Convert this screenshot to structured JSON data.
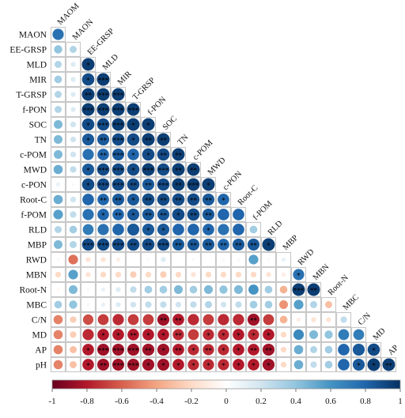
{
  "chart_data": {
    "type": "heatmap",
    "subtype": "correlation-circles-lower-triangle",
    "variables": [
      "MAOM",
      "EE-GRSP",
      "MLD",
      "MIR",
      "T-GRSP",
      "f-PON",
      "SOC",
      "TN",
      "c-POM",
      "MWD",
      "c-PON",
      "Root-C",
      "f-POM",
      "RLD",
      "MBP",
      "RWD",
      "MBN",
      "Root-N",
      "MBC",
      "C/N",
      "MD",
      "AP",
      "pH"
    ],
    "row_labels": [
      "MAON",
      "EE-GRSP",
      "MLD",
      "MIR",
      "T-GRSP",
      "f-PON",
      "SOC",
      "TN",
      "c-POM",
      "MWD",
      "c-PON",
      "Root-C",
      "f-POM",
      "RLD",
      "MBP",
      "RWD",
      "MBN",
      "Root-N",
      "MBC",
      "C/N",
      "MD",
      "AP",
      "pH"
    ],
    "diagonal_labels": [
      "MAOM",
      "MAON",
      "EE-GRSP",
      "MLD",
      "MIR",
      "T-GRSP",
      "f-PON",
      "SOC",
      "TN",
      "c-POM",
      "MWD",
      "c-PON",
      "Root-C",
      "f-POM",
      "RLD",
      "MBP",
      "RWD",
      "MBN",
      "Root-N",
      "MBC",
      "C/N",
      "MD",
      "AP"
    ],
    "values": [
      [
        0.75
      ],
      [
        0.4,
        0.3
      ],
      [
        0.3,
        0.15,
        0.95
      ],
      [
        0.35,
        0.15,
        0.9,
        0.95
      ],
      [
        0.3,
        0.15,
        0.95,
        0.95,
        0.95
      ],
      [
        0.3,
        0.15,
        0.95,
        0.95,
        0.95,
        0.95
      ],
      [
        0.45,
        0.2,
        0.9,
        0.9,
        0.95,
        0.95,
        0.95
      ],
      [
        0.45,
        0.2,
        0.85,
        0.85,
        0.9,
        0.9,
        0.95,
        0.95
      ],
      [
        0.45,
        0.2,
        0.75,
        0.8,
        0.85,
        0.8,
        0.9,
        0.9,
        0.95
      ],
      [
        0.5,
        0.25,
        0.85,
        0.9,
        0.9,
        0.9,
        0.95,
        0.9,
        0.95,
        0.95
      ],
      [
        0.1,
        0.05,
        0.9,
        0.9,
        0.9,
        0.9,
        0.85,
        0.9,
        0.95,
        0.95,
        0.95
      ],
      [
        0.5,
        0.2,
        0.8,
        0.8,
        0.85,
        0.85,
        0.9,
        0.9,
        0.9,
        0.9,
        0.85,
        0.8
      ],
      [
        0.55,
        0.25,
        0.75,
        0.8,
        0.8,
        0.85,
        0.85,
        0.85,
        0.9,
        0.9,
        0.85,
        0.8,
        0.8
      ],
      [
        0.3,
        0.35,
        0.7,
        0.75,
        0.8,
        0.85,
        0.85,
        0.85,
        0.8,
        0.8,
        0.8,
        0.75,
        0.8,
        0.35
      ],
      [
        0.45,
        0.3,
        0.9,
        0.9,
        0.9,
        0.9,
        0.9,
        0.9,
        0.85,
        0.85,
        0.85,
        0.8,
        0.85,
        0.85,
        0.95
      ],
      [
        0.05,
        -0.55,
        -0.15,
        -0.15,
        -0.1,
        0.0,
        0.05,
        0.15,
        0.0,
        0.05,
        0.0,
        0.05,
        0.05,
        0.55,
        0.05,
        0.1
      ],
      [
        -0.2,
        0.55,
        -0.15,
        -0.2,
        -0.2,
        -0.25,
        -0.2,
        -0.25,
        -0.2,
        -0.15,
        -0.2,
        -0.2,
        -0.2,
        -0.2,
        -0.15,
        -0.1,
        0.75
      ],
      [
        -0.05,
        0.45,
        0.05,
        0.1,
        0.15,
        0.25,
        0.35,
        0.35,
        0.45,
        0.35,
        0.45,
        0.4,
        0.45,
        0.6,
        0.35,
        -0.35,
        0.95,
        0.95
      ],
      [
        0.35,
        0.4,
        -0.05,
        0.1,
        0.15,
        0.2,
        0.25,
        0.25,
        0.2,
        0.25,
        0.3,
        0.2,
        0.25,
        0.35,
        0.35,
        -0.45,
        0.55,
        0.3,
        -0.3
      ],
      [
        -0.5,
        -0.25,
        -0.65,
        -0.7,
        -0.75,
        -0.7,
        -0.7,
        -0.85,
        -0.8,
        -0.75,
        -0.7,
        -0.75,
        -0.75,
        -0.85,
        -0.7,
        -0.35,
        -0.1,
        -0.15,
        -0.15,
        0.25
      ],
      [
        -0.5,
        -0.25,
        -0.75,
        -0.8,
        -0.8,
        -0.8,
        -0.8,
        -0.8,
        -0.75,
        -0.7,
        -0.75,
        -0.75,
        -0.8,
        -0.75,
        -0.8,
        -0.2,
        0.65,
        0.45,
        0.4,
        0.7,
        0.7
      ],
      [
        -0.5,
        -0.3,
        -0.8,
        -0.85,
        -0.85,
        -0.85,
        -0.85,
        -0.85,
        -0.8,
        -0.75,
        -0.75,
        -0.75,
        -0.8,
        -0.8,
        -0.85,
        -0.2,
        0.5,
        0.3,
        0.35,
        0.8,
        0.85,
        0.9
      ],
      [
        -0.5,
        -0.3,
        -0.8,
        -0.85,
        -0.85,
        -0.85,
        -0.85,
        -0.85,
        -0.8,
        -0.75,
        -0.75,
        -0.75,
        -0.8,
        -0.8,
        -0.85,
        -0.2,
        0.5,
        0.25,
        0.35,
        0.8,
        0.85,
        0.95,
        0.95
      ]
    ],
    "stars": [
      [
        ""
      ],
      [
        "",
        ""
      ],
      [
        "",
        "",
        "*"
      ],
      [
        "",
        "",
        "*",
        "***"
      ],
      [
        "",
        "",
        "**",
        "***",
        "***"
      ],
      [
        "",
        "",
        "***",
        "***",
        "***",
        "***"
      ],
      [
        "",
        "",
        "*",
        "***",
        "***",
        "*",
        "*"
      ],
      [
        "",
        "",
        "*",
        "**",
        "***",
        "*",
        "**",
        "**"
      ],
      [
        "",
        "",
        "",
        "**",
        "***",
        "*",
        "*",
        "**",
        "**"
      ],
      [
        "",
        "",
        "*",
        "***",
        "***",
        "*",
        "***",
        "***",
        "**",
        "**"
      ],
      [
        "",
        "",
        "*",
        "***",
        "***",
        "**",
        "**",
        "***",
        "**",
        "***",
        "*"
      ],
      [
        "",
        "",
        "",
        "**",
        "**",
        "*",
        "**",
        "**",
        "**",
        "**",
        "**",
        "*"
      ],
      [
        "",
        "",
        "",
        "*",
        "**",
        "*",
        "**",
        "**",
        "*",
        "**",
        "**",
        "",
        ""
      ],
      [
        "",
        "",
        "",
        "",
        "",
        "",
        "*",
        "*",
        "",
        "",
        "*",
        "",
        "",
        ""
      ],
      [
        "",
        "",
        "***",
        "***",
        "***",
        "**",
        "**",
        "***",
        "**",
        "**",
        "**",
        "**",
        "**",
        "**",
        "*"
      ],
      [
        "",
        "",
        "",
        "",
        "",
        "",
        "",
        "",
        "",
        "",
        "",
        "",
        "",
        "",
        "",
        ""
      ],
      [
        "",
        "",
        "",
        "",
        "",
        "",
        "",
        "",
        "",
        "",
        "",
        "",
        "",
        "",
        "",
        "",
        "*"
      ],
      [
        "",
        "",
        "",
        "",
        "",
        "",
        "",
        "",
        "",
        "",
        "",
        "",
        "",
        "",
        "",
        "",
        "***",
        "**"
      ],
      [
        "",
        "",
        "",
        "",
        "",
        "",
        "",
        "",
        "",
        "",
        "",
        "",
        "",
        "",
        "",
        "",
        "",
        "",
        ""
      ],
      [
        "",
        "",
        "",
        "",
        "",
        "",
        "",
        "**",
        "**",
        "",
        "",
        "",
        "",
        "**",
        "",
        "",
        "",
        "",
        "",
        ""
      ],
      [
        "",
        "",
        "",
        "*",
        "*",
        "**",
        "*",
        "*",
        "**",
        "",
        "*",
        "*",
        "*",
        "*",
        "*",
        "",
        "",
        "",
        "",
        "",
        ""
      ],
      [
        "",
        "",
        "*",
        "***",
        "***",
        "***",
        "**",
        "*",
        "**",
        "*",
        "**",
        "*",
        "*",
        "**",
        "**",
        "",
        "",
        "",
        "",
        "",
        "",
        "*"
      ],
      [
        "",
        "",
        "*",
        "**",
        "***",
        "***",
        "*",
        "*",
        "*",
        "*",
        "*",
        "*",
        "*",
        "*",
        "*",
        "",
        "",
        "",
        "",
        "",
        "*",
        "*",
        "**"
      ]
    ],
    "colorbar": {
      "range": [
        -1,
        1
      ],
      "ticks": [
        "-1",
        "-0.8",
        "-0.6",
        "-0.4",
        "-0.2",
        "0",
        "0.2",
        "0.4",
        "0.6",
        "0.8",
        "1"
      ],
      "colors": [
        "#67001f",
        "#b2182b",
        "#d6604d",
        "#f4a582",
        "#fddbc7",
        "#ffffff",
        "#d1e5f0",
        "#92c5de",
        "#4393c3",
        "#2166ac",
        "#053061"
      ]
    },
    "title": "",
    "xlabel": "",
    "ylabel": ""
  }
}
